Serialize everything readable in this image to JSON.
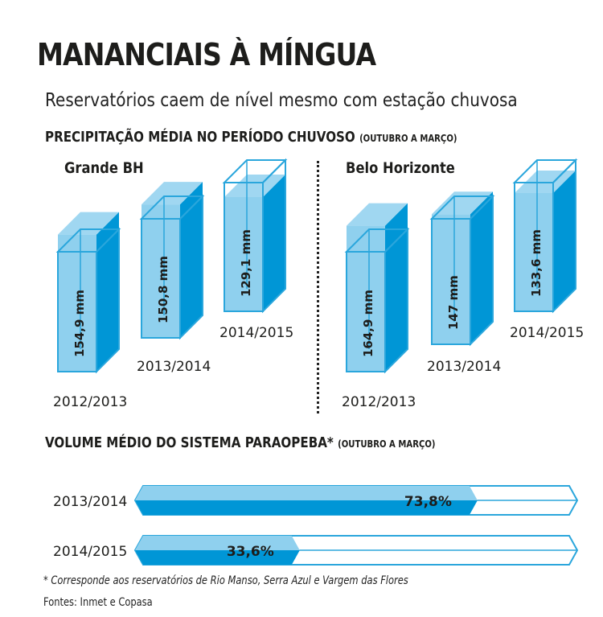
{
  "title": "MANANCIAIS À MÍNGUA",
  "subtitle": "Reservatórios caem de nível mesmo com estação chuvosa",
  "section1": {
    "title": "PRECIPITAÇÃO MÉDIA NO PERÍODO CHUVOSO",
    "note": "(OUTUBRO A MARÇO)"
  },
  "section2": {
    "title": "VOLUME MÉDIO DO SISTEMA PARAOPEBA*",
    "note": "(OUTUBRO A MARÇO)"
  },
  "footnote": "* Corresponde aos reservatórios de Rio Manso, Serra Azul e Vargem das Flores",
  "sources": "Fontes: Inmet e Copasa",
  "colors": {
    "fill_dark": "#0096d6",
    "fill_light": "#8fd0ee",
    "outline": "#2aa6dc",
    "empty": "#ffffff"
  },
  "chart_data": [
    {
      "type": "bar",
      "title": "Grande BH",
      "unit": "mm",
      "categories": [
        "2012/2013",
        "2013/2014",
        "2014/2015"
      ],
      "values": [
        154.9,
        150.8,
        129.1
      ],
      "labels": [
        "154,9 mm",
        "150,8 mm",
        "129,1 mm"
      ]
    },
    {
      "type": "bar",
      "title": "Belo Horizonte",
      "unit": "mm",
      "categories": [
        "2012/2013",
        "2013/2014",
        "2014/2015"
      ],
      "values": [
        164.9,
        147,
        133.6
      ],
      "labels": [
        "164,9 mm",
        "147 mm",
        "133,6 mm"
      ]
    },
    {
      "type": "bar",
      "orientation": "horizontal",
      "title": "VOLUME MÉDIO DO SISTEMA PARAOPEBA*",
      "unit": "%",
      "categories": [
        "2013/2014",
        "2014/2015"
      ],
      "values": [
        73.8,
        33.6
      ],
      "labels": [
        "73,8%",
        "33,6%"
      ],
      "xlim": [
        0,
        100
      ]
    }
  ]
}
